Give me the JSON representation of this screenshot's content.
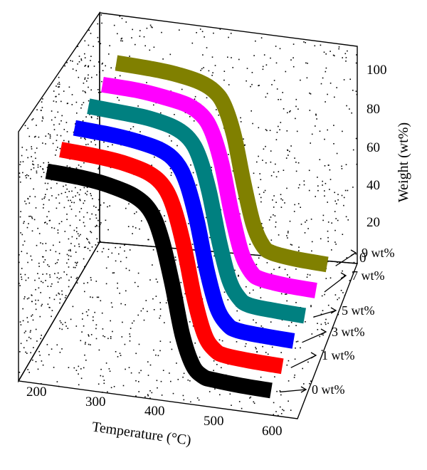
{
  "chart_data": {
    "type": "line",
    "title": "",
    "xlabel": "Temperature (°C)",
    "ylabel": "Weight (wt%)",
    "zlabel": "",
    "x_ticks": [
      "200",
      "300",
      "400",
      "500",
      "600"
    ],
    "y_ticks": [
      "0",
      "20",
      "40",
      "60",
      "80",
      "100"
    ],
    "xlim": [
      175,
      625
    ],
    "ylim": [
      0,
      110
    ],
    "grid": "dotted",
    "series": [
      {
        "name": "0 wt%",
        "color": "#000000",
        "x": [
          180,
          250,
          300,
          350,
          380,
          400,
          420,
          440,
          460,
          480,
          500,
          550,
          610
        ],
        "y": [
          99,
          98,
          96,
          92,
          85,
          72,
          50,
          24,
          9,
          4,
          3,
          2,
          1.5
        ]
      },
      {
        "name": "1 wt%",
        "color": "#ff0000",
        "x": [
          180,
          250,
          300,
          350,
          380,
          400,
          420,
          440,
          460,
          480,
          500,
          550,
          610
        ],
        "y": [
          99,
          98,
          96.5,
          93,
          87,
          76,
          56,
          30,
          12,
          5,
          3,
          2,
          1.5
        ]
      },
      {
        "name": "3 wt%",
        "color": "#0000ff",
        "x": [
          180,
          250,
          300,
          350,
          380,
          400,
          420,
          440,
          460,
          480,
          500,
          550,
          610
        ],
        "y": [
          99,
          98,
          96.5,
          93.5,
          88,
          78,
          59,
          33,
          14,
          6,
          3.5,
          2.5,
          2
        ]
      },
      {
        "name": "5 wt%",
        "color": "#008080",
        "x": [
          180,
          250,
          300,
          350,
          380,
          400,
          420,
          440,
          460,
          480,
          500,
          550,
          610
        ],
        "y": [
          99,
          98,
          97,
          94,
          89,
          80,
          62,
          36,
          16,
          7,
          4,
          3,
          2.5
        ]
      },
      {
        "name": "7 wt%",
        "color": "#ff00ff",
        "x": [
          180,
          250,
          300,
          350,
          380,
          400,
          420,
          440,
          460,
          480,
          500,
          550,
          610
        ],
        "y": [
          99,
          98.5,
          97,
          94.5,
          90,
          82,
          65,
          39,
          18,
          8,
          5,
          3.5,
          3
        ]
      },
      {
        "name": "9 wt%",
        "color": "#808000",
        "x": [
          180,
          250,
          300,
          350,
          380,
          400,
          420,
          440,
          460,
          480,
          500,
          550,
          610
        ],
        "y": [
          99,
          98.5,
          97.5,
          95,
          91,
          84,
          68,
          42,
          20,
          9,
          6,
          4.5,
          4
        ]
      }
    ]
  }
}
